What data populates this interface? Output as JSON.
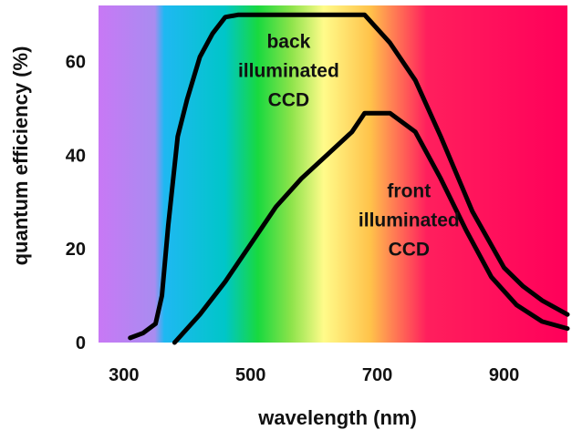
{
  "chart_data": {
    "type": "line",
    "title": "",
    "xlabel": "wavelength (nm)",
    "ylabel": "quantum efficiency (%)",
    "xlim": [
      260,
      1000
    ],
    "ylim": [
      0,
      72
    ],
    "xticks": [
      300,
      500,
      700,
      900
    ],
    "yticks": [
      0,
      20,
      40,
      60
    ],
    "grid": false,
    "background": "visible spectrum color bands",
    "spectrum_colors": [
      "#c878f5",
      "#a98cf0",
      "#1fb8f2",
      "#00c6c8",
      "#18d93f",
      "#8be34a",
      "#fffb8a",
      "#ffc24a",
      "#ff8a52",
      "#ff1f5d",
      "#ff005a"
    ],
    "series": [
      {
        "x": [
          310,
          330,
          350,
          360,
          370,
          385,
          400,
          420,
          440,
          460,
          480,
          680,
          720,
          760,
          800,
          850,
          900,
          930,
          960,
          1000
        ],
        "y": [
          1,
          2,
          4,
          10,
          25,
          44,
          52,
          61,
          66,
          69.5,
          70,
          70,
          64,
          56,
          44,
          28,
          16,
          12,
          9,
          6
        ]
      },
      {
        "x": [
          380,
          420,
          460,
          500,
          540,
          580,
          620,
          660,
          680,
          720,
          760,
          800,
          840,
          880,
          920,
          960,
          1000
        ],
        "y": [
          0,
          6,
          13,
          21,
          29,
          35,
          40,
          45,
          49,
          49,
          45,
          35,
          24,
          14,
          8,
          4.5,
          3
        ]
      }
    ],
    "annotations": [
      {
        "lines": [
          "back",
          "illuminated",
          "CCD"
        ],
        "x": 560,
        "y": 63
      },
      {
        "lines": [
          "front",
          "illuminated",
          "CCD"
        ],
        "x": 750,
        "y": 31
      }
    ]
  }
}
